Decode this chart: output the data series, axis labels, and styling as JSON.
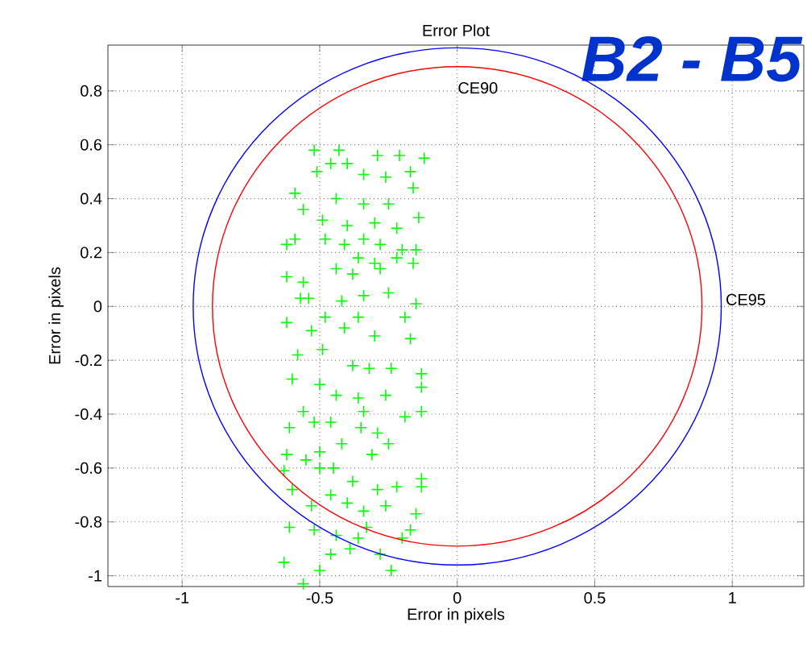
{
  "chart_data": {
    "type": "scatter",
    "title": "Error Plot",
    "xlabel": "Error in pixels",
    "ylabel": "Error in pixels",
    "xlim": [
      -1.27,
      1.26
    ],
    "ylim": [
      -1.04,
      0.97
    ],
    "xticks": [
      -1,
      -0.5,
      0,
      0.5,
      1
    ],
    "yticks": [
      -1,
      -0.8,
      -0.6,
      -0.4,
      -0.2,
      0,
      0.2,
      0.4,
      0.6,
      0.8
    ],
    "grid": true,
    "annotations": [
      "CE90",
      "CE95",
      "B2 - B5"
    ],
    "series": [
      {
        "color": "#00ff00",
        "x": [
          -0.52,
          -0.43,
          -0.51,
          -0.46,
          -0.4,
          -0.34,
          -0.29,
          -0.21,
          -0.17,
          -0.12,
          -0.26,
          -0.16,
          -0.59,
          -0.56,
          -0.44,
          -0.34,
          -0.25,
          -0.49,
          -0.4,
          -0.3,
          -0.22,
          -0.14,
          -0.62,
          -0.59,
          -0.48,
          -0.41,
          -0.34,
          -0.28,
          -0.2,
          -0.15,
          -0.36,
          -0.3,
          -0.22,
          -0.16,
          -0.62,
          -0.56,
          -0.44,
          -0.38,
          -0.28,
          -0.42,
          -0.34,
          -0.25,
          -0.57,
          -0.54,
          -0.15,
          -0.19,
          -0.36,
          -0.48,
          -0.62,
          -0.53,
          -0.3,
          -0.17,
          -0.41,
          -0.58,
          -0.49,
          -0.38,
          -0.32,
          -0.24,
          -0.13,
          -0.6,
          -0.5,
          -0.44,
          -0.36,
          -0.26,
          -0.13,
          -0.56,
          -0.52,
          -0.46,
          -0.34,
          -0.19,
          -0.13,
          -0.61,
          -0.35,
          -0.29,
          -0.25,
          -0.62,
          -0.55,
          -0.5,
          -0.42,
          -0.31,
          -0.63,
          -0.5,
          -0.45,
          -0.38,
          -0.29,
          -0.22,
          -0.13,
          -0.13,
          -0.6,
          -0.53,
          -0.46,
          -0.4,
          -0.34,
          -0.26,
          -0.15,
          -0.61,
          -0.52,
          -0.44,
          -0.36,
          -0.33,
          -0.2,
          -0.17,
          -0.46,
          -0.39,
          -0.28,
          -0.24,
          -0.63,
          -0.5,
          -0.56
        ],
        "marker": "cross",
        "values": [
          0.58,
          0.58,
          0.5,
          0.53,
          0.53,
          0.49,
          0.56,
          0.56,
          0.5,
          0.55,
          0.48,
          0.44,
          0.42,
          0.36,
          0.4,
          0.38,
          0.38,
          0.32,
          0.3,
          0.31,
          0.29,
          0.33,
          0.23,
          0.25,
          0.25,
          0.23,
          0.25,
          0.23,
          0.21,
          0.21,
          0.18,
          0.16,
          0.18,
          0.16,
          0.11,
          0.09,
          0.14,
          0.12,
          0.14,
          0.02,
          0.04,
          0.05,
          0.03,
          0.03,
          0.01,
          -0.04,
          -0.04,
          -0.04,
          -0.06,
          -0.09,
          -0.11,
          -0.12,
          -0.08,
          -0.18,
          -0.16,
          -0.22,
          -0.23,
          -0.23,
          -0.25,
          -0.27,
          -0.29,
          -0.33,
          -0.34,
          -0.33,
          -0.3,
          -0.39,
          -0.43,
          -0.43,
          -0.39,
          -0.41,
          -0.39,
          -0.45,
          -0.45,
          -0.47,
          -0.51,
          -0.55,
          -0.57,
          -0.54,
          -0.51,
          -0.55,
          -0.61,
          -0.6,
          -0.6,
          -0.65,
          -0.68,
          -0.67,
          -0.64,
          -0.67,
          -0.68,
          -0.74,
          -0.7,
          -0.73,
          -0.76,
          -0.74,
          -0.77,
          -0.82,
          -0.83,
          -0.85,
          -0.86,
          -0.82,
          -0.86,
          -0.83,
          -0.92,
          -0.9,
          -0.92,
          -0.98,
          -0.95,
          -0.98,
          -1.03
        ]
      }
    ]
  }
}
